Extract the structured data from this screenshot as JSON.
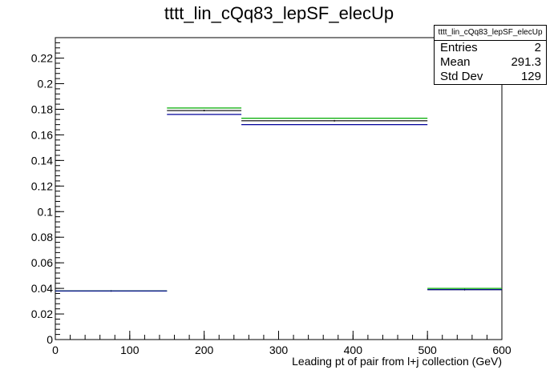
{
  "chart_data": {
    "type": "histogram",
    "title": "tttt_lin_cQq83_lepSF_elecUp",
    "xlabel": "Leading pt of pair from l+j collection (GeV)",
    "ylabel": "",
    "xlim": [
      0,
      600
    ],
    "ylim": [
      0,
      0.236
    ],
    "x_ticks": [
      0,
      100,
      200,
      300,
      400,
      500,
      600
    ],
    "y_ticks": [
      0,
      0.02,
      0.04,
      0.06,
      0.08,
      0.1,
      0.12,
      0.14,
      0.16,
      0.18,
      0.2,
      0.22
    ],
    "y_tick_labels": [
      "0",
      "0.02",
      "0.04",
      "0.06",
      "0.08",
      "0.1",
      "0.12",
      "0.14",
      "0.16",
      "0.18",
      "0.2",
      "0.22"
    ],
    "x_tick_labels": [
      "0",
      "100",
      "200",
      "300",
      "400",
      "500",
      "600"
    ],
    "bin_edges": [
      0,
      150,
      250,
      500,
      600
    ],
    "series": [
      {
        "color": "#000000",
        "values": [
          0.038,
          0.179,
          0.171,
          0.039
        ]
      },
      {
        "color": "#00aa00",
        "values": [
          0.038,
          0.181,
          0.173,
          0.04
        ]
      },
      {
        "color": "#000099",
        "values": [
          0.038,
          0.176,
          0.168,
          0.039
        ]
      }
    ],
    "stats": {
      "name": "tttt_lin_cQq83_lepSF_elecUp",
      "entries_label": "Entries",
      "entries": "2",
      "mean_label": "Mean",
      "mean": "291.3",
      "stddev_label": "Std Dev",
      "stddev": "129"
    }
  }
}
